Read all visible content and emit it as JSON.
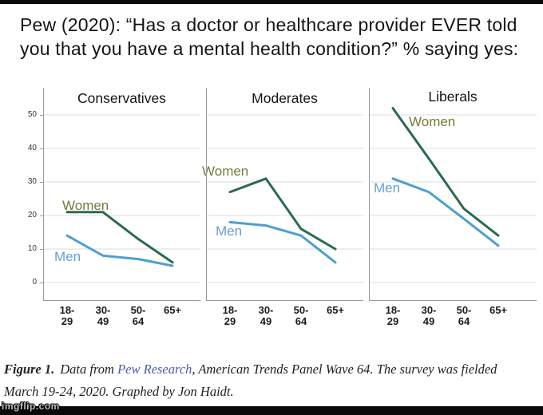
{
  "title": {
    "line1": "Pew (2020): “Has a doctor or healthcare provider EVER told",
    "line2": "you that you have a mental health condition?” % saying yes:"
  },
  "chart_data": {
    "type": "line",
    "categories": [
      "18-29",
      "30-49",
      "50-64",
      "65+"
    ],
    "xlabel": "",
    "ylabel": "",
    "ylim": [
      0,
      57
    ],
    "y_ticks": [
      0,
      10,
      20,
      30,
      40,
      50
    ],
    "grid": true,
    "legend_position": "inline-labels",
    "series_colors": {
      "women_line": "#2b6a50",
      "women_label": "#77793c",
      "men_line": "#4d9fd3",
      "men_label": "#649fd4"
    },
    "panels": [
      {
        "title": "Conservatives",
        "series": [
          {
            "name": "Women",
            "values": [
              21,
              21,
              13,
              6
            ]
          },
          {
            "name": "Men",
            "values": [
              14,
              8,
              7,
              5
            ]
          }
        ]
      },
      {
        "title": "Moderates",
        "series": [
          {
            "name": "Women",
            "values": [
              27,
              31,
              16,
              10
            ]
          },
          {
            "name": "Men",
            "values": [
              18,
              17,
              14,
              6
            ]
          }
        ]
      },
      {
        "title": "Liberals",
        "series": [
          {
            "name": "Women",
            "values": [
              52,
              37,
              22,
              14
            ]
          },
          {
            "name": "Men",
            "values": [
              31,
              27,
              19,
              11
            ]
          }
        ]
      }
    ]
  },
  "caption": {
    "figure_label": "Figure 1.",
    "text_before_link": "Data from ",
    "link_text": "Pew Research",
    "text_after_link": ", American Trends Panel Wave 64. The survey was fielded",
    "line2": "March 19-24, 2020. Graphed by Jon Haidt."
  },
  "watermark": "imgflip.com"
}
